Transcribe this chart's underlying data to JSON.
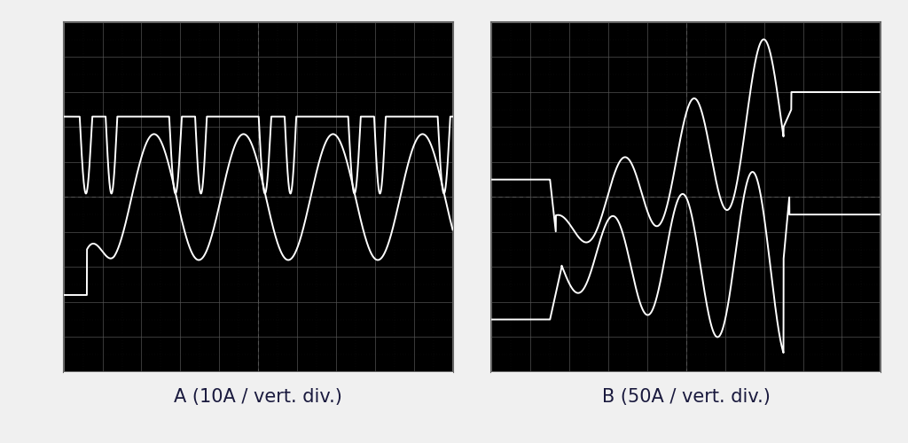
{
  "panel_A_label": "A (10A / vert. div.)",
  "panel_B_label": "B (50A / vert. div.)",
  "bg_color": "#000000",
  "outer_bg": "#f0f0f0",
  "grid_color": "#555555",
  "grid_color_mid": "#333333",
  "wave_color": "#ffffff",
  "label_color": "#1a1a3e",
  "label_fontsize": 15,
  "figsize": [
    10.24,
    5.0
  ],
  "dpi": 100
}
